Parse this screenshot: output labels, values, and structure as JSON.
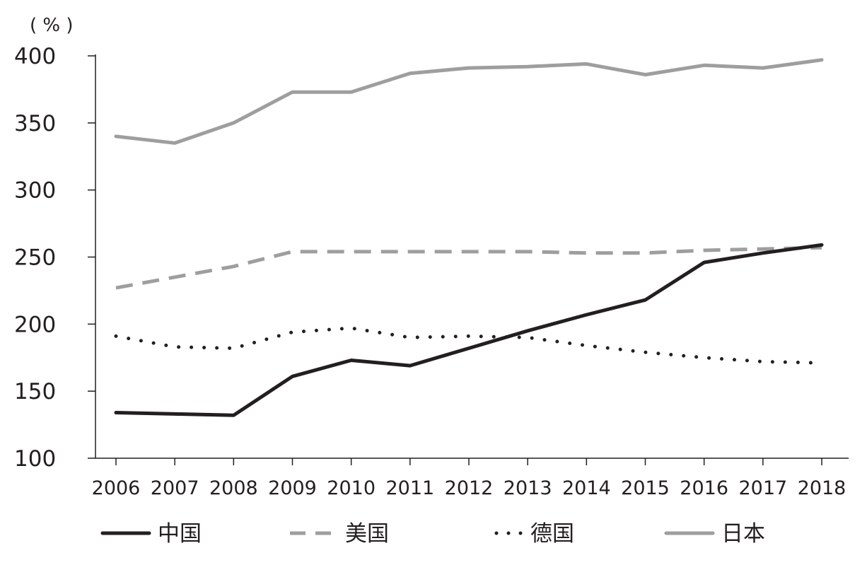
{
  "chart_data": {
    "type": "line",
    "unit_label": "( % )",
    "title": "",
    "xlabel": "",
    "ylabel": "",
    "x": [
      "2006",
      "2007",
      "2008",
      "2009",
      "2010",
      "2011",
      "2012",
      "2013",
      "2014",
      "2015",
      "2016",
      "2017",
      "2018"
    ],
    "ylim": [
      100,
      400
    ],
    "yticks": [
      100,
      150,
      200,
      250,
      300,
      350,
      400
    ],
    "grid": false,
    "legend_position": "bottom",
    "series": [
      {
        "name": "中国",
        "color": "#231f20",
        "style": "solid",
        "values": [
          134,
          133,
          132,
          161,
          173,
          169,
          182,
          195,
          207,
          218,
          246,
          253,
          259
        ]
      },
      {
        "name": "美国",
        "color": "#9e9e9e",
        "style": "dashed",
        "values": [
          227,
          235,
          243,
          254,
          254,
          254,
          254,
          254,
          253,
          253,
          255,
          256,
          257
        ]
      },
      {
        "name": "德国",
        "color": "#231f20",
        "style": "dotted",
        "values": [
          191,
          183,
          182,
          194,
          197,
          190,
          191,
          190,
          184,
          179,
          175,
          172,
          171
        ]
      },
      {
        "name": "日本",
        "color": "#9e9e9e",
        "style": "solid",
        "values": [
          340,
          335,
          350,
          373,
          373,
          387,
          391,
          392,
          394,
          386,
          393,
          391,
          397
        ]
      }
    ]
  }
}
